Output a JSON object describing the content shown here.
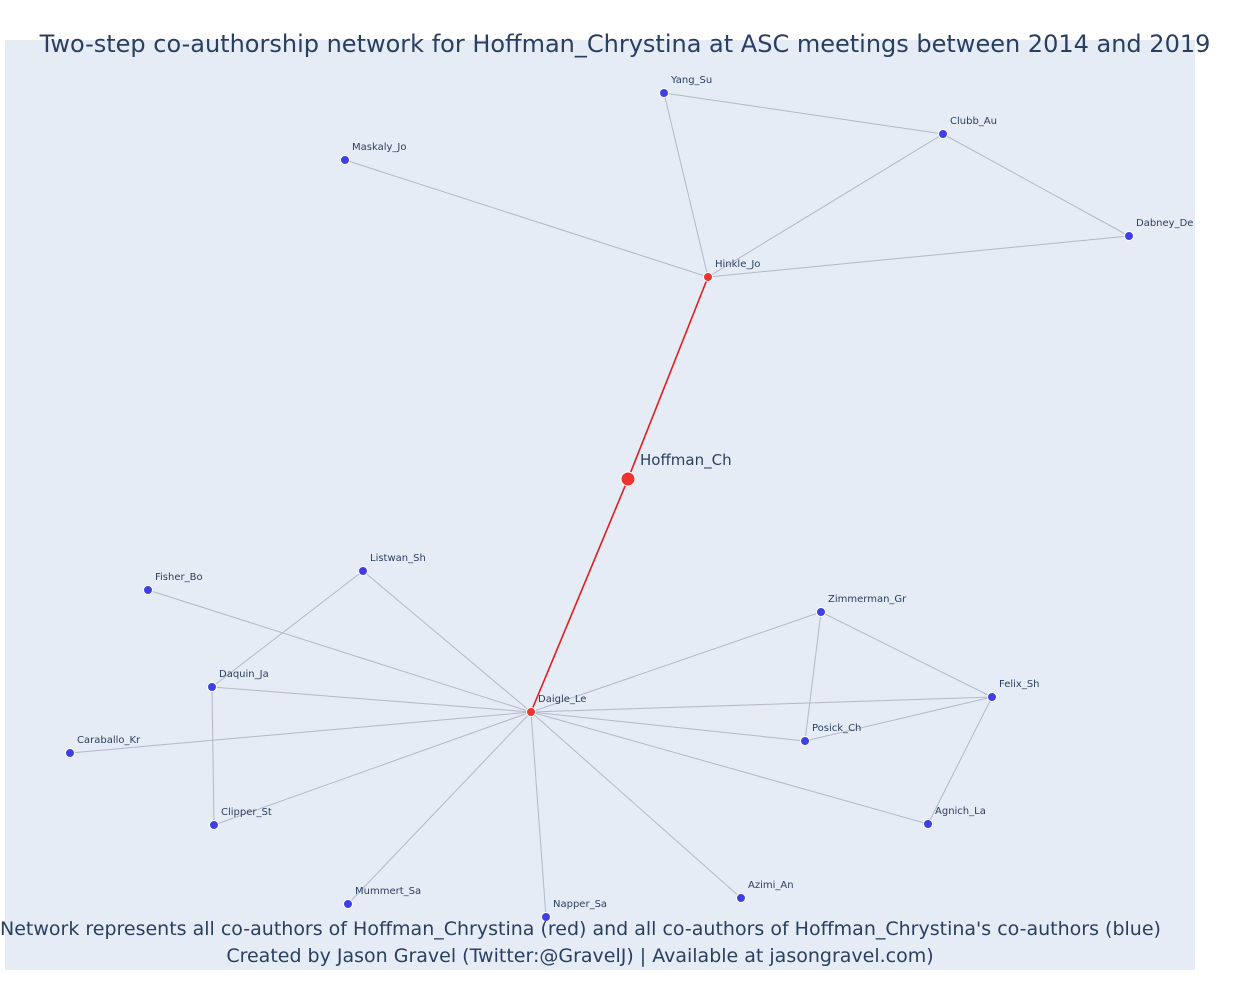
{
  "title": "Two-step co-authorship network for Hoffman_Chrystina at ASC meetings between 2014 and 2019",
  "caption_line1": "Network represents all co-authors of Hoffman_Chrystina (red) and all co-authors of Hoffman_Chrystina's co-authors (blue)",
  "caption_line2": "Created by Jason Gravel (Twitter:@GravelJ) | Available at jasongravel.com)",
  "colors": {
    "background": "#e5ecf6",
    "blue_node": "#3f3fe6",
    "red_node": "#ee3333",
    "red_edge": "#e11d1d",
    "grey_edge": "#b4b8c8",
    "text": "#2a3f5f"
  },
  "nodes": [
    {
      "id": "Hoffman_Ch",
      "label": "Hoffman_Ch",
      "group": "focal"
    },
    {
      "id": "Hinkle_Jo",
      "label": "Hinkle_Jo",
      "group": "red"
    },
    {
      "id": "Daigle_Le",
      "label": "Daigle_Le",
      "group": "red"
    },
    {
      "id": "Yang_Su",
      "label": "Yang_Su",
      "group": "blue"
    },
    {
      "id": "Clubb_Au",
      "label": "Clubb_Au",
      "group": "blue"
    },
    {
      "id": "Maskaly_Jo",
      "label": "Maskaly_Jo",
      "group": "blue"
    },
    {
      "id": "Dabney_De",
      "label": "Dabney_De",
      "group": "blue"
    },
    {
      "id": "Listwan_Sh",
      "label": "Listwan_Sh",
      "group": "blue"
    },
    {
      "id": "Fisher_Bo",
      "label": "Fisher_Bo",
      "group": "blue"
    },
    {
      "id": "Zimmerman_Gr",
      "label": "Zimmerman_Gr",
      "group": "blue"
    },
    {
      "id": "Daquin_Ja",
      "label": "Daquin_Ja",
      "group": "blue"
    },
    {
      "id": "Felix_Sh",
      "label": "Felix_Sh",
      "group": "blue"
    },
    {
      "id": "Posick_Ch",
      "label": "Posick_Ch",
      "group": "blue"
    },
    {
      "id": "Caraballo_Kr",
      "label": "Caraballo_Kr",
      "group": "blue"
    },
    {
      "id": "Clipper_St",
      "label": "Clipper_St",
      "group": "blue"
    },
    {
      "id": "Agnich_La",
      "label": "Agnich_La",
      "group": "blue"
    },
    {
      "id": "Mummert_Sa",
      "label": "Mummert_Sa",
      "group": "blue"
    },
    {
      "id": "Napper_Sa",
      "label": "Napper_Sa",
      "group": "blue"
    },
    {
      "id": "Azimi_An",
      "label": "Azimi_An",
      "group": "blue"
    }
  ],
  "edges": [
    {
      "source": "Hoffman_Ch",
      "target": "Hinkle_Jo",
      "type": "red"
    },
    {
      "source": "Hoffman_Ch",
      "target": "Daigle_Le",
      "type": "red"
    },
    {
      "source": "Hinkle_Jo",
      "target": "Yang_Su",
      "type": "grey"
    },
    {
      "source": "Hinkle_Jo",
      "target": "Clubb_Au",
      "type": "grey"
    },
    {
      "source": "Hinkle_Jo",
      "target": "Maskaly_Jo",
      "type": "grey"
    },
    {
      "source": "Hinkle_Jo",
      "target": "Dabney_De",
      "type": "grey"
    },
    {
      "source": "Yang_Su",
      "target": "Clubb_Au",
      "type": "grey"
    },
    {
      "source": "Clubb_Au",
      "target": "Dabney_De",
      "type": "grey"
    },
    {
      "source": "Daigle_Le",
      "target": "Listwan_Sh",
      "type": "grey"
    },
    {
      "source": "Daigle_Le",
      "target": "Fisher_Bo",
      "type": "grey"
    },
    {
      "source": "Daigle_Le",
      "target": "Daquin_Ja",
      "type": "grey"
    },
    {
      "source": "Daigle_Le",
      "target": "Caraballo_Kr",
      "type": "grey"
    },
    {
      "source": "Daigle_Le",
      "target": "Clipper_St",
      "type": "grey"
    },
    {
      "source": "Daigle_Le",
      "target": "Mummert_Sa",
      "type": "grey"
    },
    {
      "source": "Daigle_Le",
      "target": "Napper_Sa",
      "type": "grey"
    },
    {
      "source": "Daigle_Le",
      "target": "Azimi_An",
      "type": "grey"
    },
    {
      "source": "Daigle_Le",
      "target": "Agnich_La",
      "type": "grey"
    },
    {
      "source": "Daigle_Le",
      "target": "Posick_Ch",
      "type": "grey"
    },
    {
      "source": "Daigle_Le",
      "target": "Felix_Sh",
      "type": "grey"
    },
    {
      "source": "Daigle_Le",
      "target": "Zimmerman_Gr",
      "type": "grey"
    },
    {
      "source": "Listwan_Sh",
      "target": "Daquin_Ja",
      "type": "grey"
    },
    {
      "source": "Daquin_Ja",
      "target": "Clipper_St",
      "type": "grey"
    },
    {
      "source": "Zimmerman_Gr",
      "target": "Felix_Sh",
      "type": "grey"
    },
    {
      "source": "Zimmerman_Gr",
      "target": "Posick_Ch",
      "type": "grey"
    },
    {
      "source": "Posick_Ch",
      "target": "Felix_Sh",
      "type": "grey"
    },
    {
      "source": "Felix_Sh",
      "target": "Agnich_La",
      "type": "grey"
    }
  ]
}
